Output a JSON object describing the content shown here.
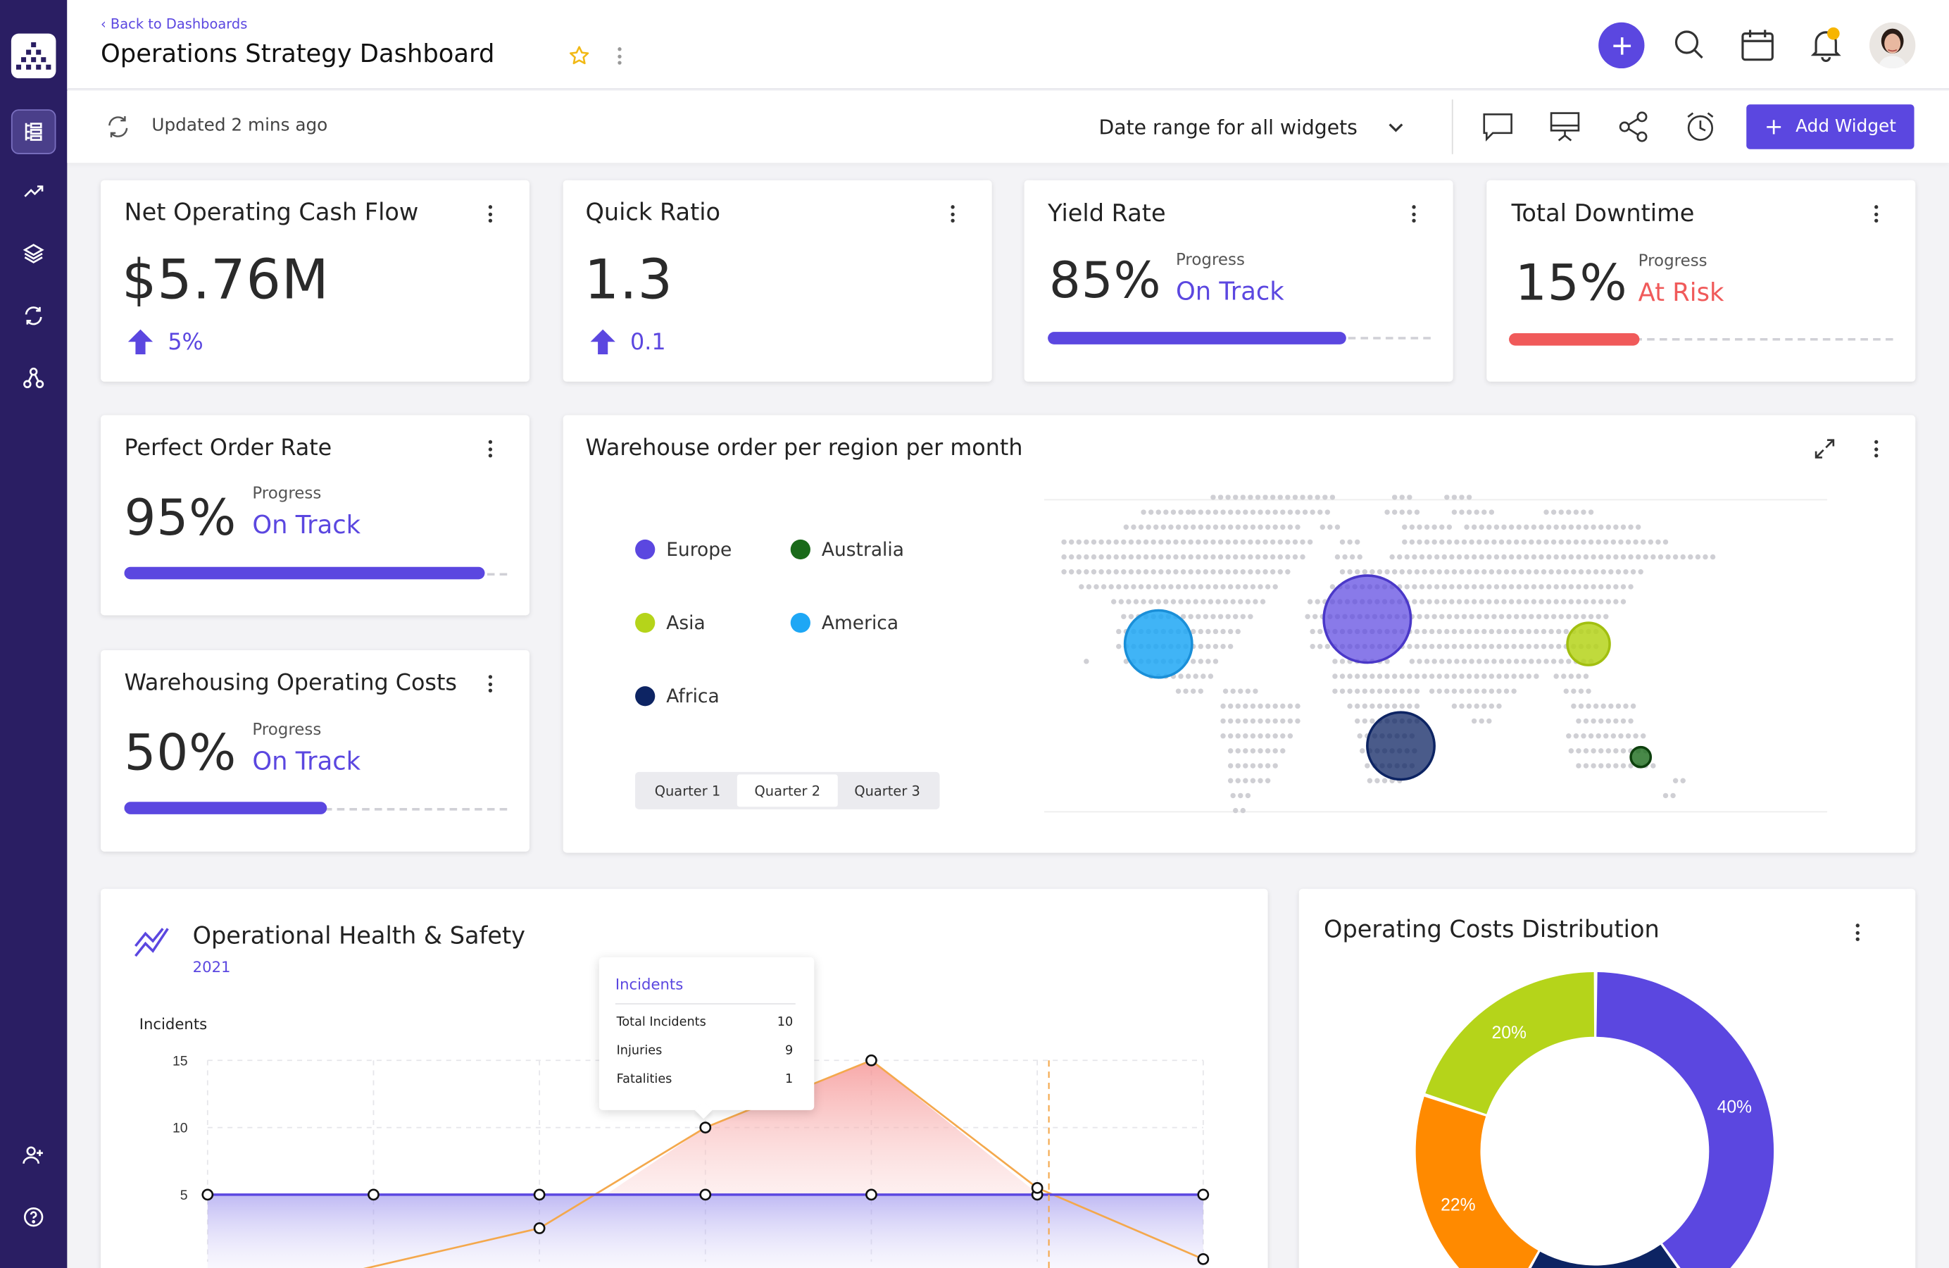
{
  "header": {
    "back_label": "‹ Back to Dashboards",
    "title": "Operations Strategy Dashboard"
  },
  "subbar": {
    "updated": "Updated 2 mins ago",
    "date_range": "Date range for all widgets",
    "add_widget": "Add Widget",
    "add_widget_plus": "+"
  },
  "kpis": {
    "cash_flow": {
      "title": "Net Operating Cash Flow",
      "value": "$5.76M",
      "change": "5%"
    },
    "quick_ratio": {
      "title": "Quick Ratio",
      "value": "1.3",
      "change": "0.1"
    },
    "yield_rate": {
      "title": "Yield Rate",
      "value": "85%",
      "progress_label": "Progress",
      "status": "On Track",
      "progress": 0.78
    },
    "downtime": {
      "title": "Total Downtime",
      "value": "15%",
      "progress_label": "Progress",
      "status": "At Risk",
      "progress": 0.34
    },
    "perfect_order": {
      "title": "Perfect Order Rate",
      "value": "95%",
      "progress_label": "Progress",
      "status": "On Track",
      "progress": 0.94
    },
    "warehousing": {
      "title": "Warehousing Operating Costs",
      "value": "50%",
      "progress_label": "Progress",
      "status": "On Track",
      "progress": 0.53
    }
  },
  "map_widget": {
    "title": "Warehouse order per region per month",
    "legend": [
      {
        "label": "Europe",
        "color": "#5b47e0"
      },
      {
        "label": "Australia",
        "color": "#1a6a1a"
      },
      {
        "label": "Asia",
        "color": "#b5d41a"
      },
      {
        "label": "America",
        "color": "#1ea7f5"
      },
      {
        "label": "Africa",
        "color": "#0d2463"
      }
    ],
    "tabs": [
      "Quarter 1",
      "Quarter 2",
      "Quarter 3"
    ],
    "selected_tab": "Quarter 2"
  },
  "health_widget": {
    "title": "Operational Health & Safety",
    "year": "2021",
    "tooltip": {
      "title": "Incidents",
      "rows": [
        {
          "label": "Total Incidents",
          "value": "10"
        },
        {
          "label": "Injuries",
          "value": "9"
        },
        {
          "label": "Fatalities",
          "value": "1"
        }
      ]
    }
  },
  "costs_widget": {
    "title": "Operating Costs Distribution"
  },
  "chart_data": [
    {
      "type": "area",
      "ylabel": "Incidents",
      "yticks": [
        "15",
        "10",
        "5"
      ],
      "ylim": [
        0,
        15
      ],
      "x": [
        0,
        1,
        2,
        3,
        4,
        5,
        6
      ],
      "series": [
        {
          "name": "",
          "color": "#5b47e0",
          "values": [
            5,
            5,
            5,
            5,
            5,
            5,
            5
          ]
        },
        {
          "name": "",
          "color": "#f4a84c",
          "values": [
            null,
            null,
            2.5,
            10,
            15,
            5.5,
            0.2
          ]
        }
      ],
      "grid": true
    },
    {
      "type": "pie",
      "donut": true,
      "slices": [
        {
          "label": "40%",
          "value": 40,
          "color": "#5b47e0"
        },
        {
          "label": "",
          "value": 18,
          "color": "#0d2463"
        },
        {
          "label": "22%",
          "value": 22,
          "color": "#ff8a00"
        },
        {
          "label": "20%",
          "value": 20,
          "color": "#b5d41a"
        }
      ]
    }
  ]
}
